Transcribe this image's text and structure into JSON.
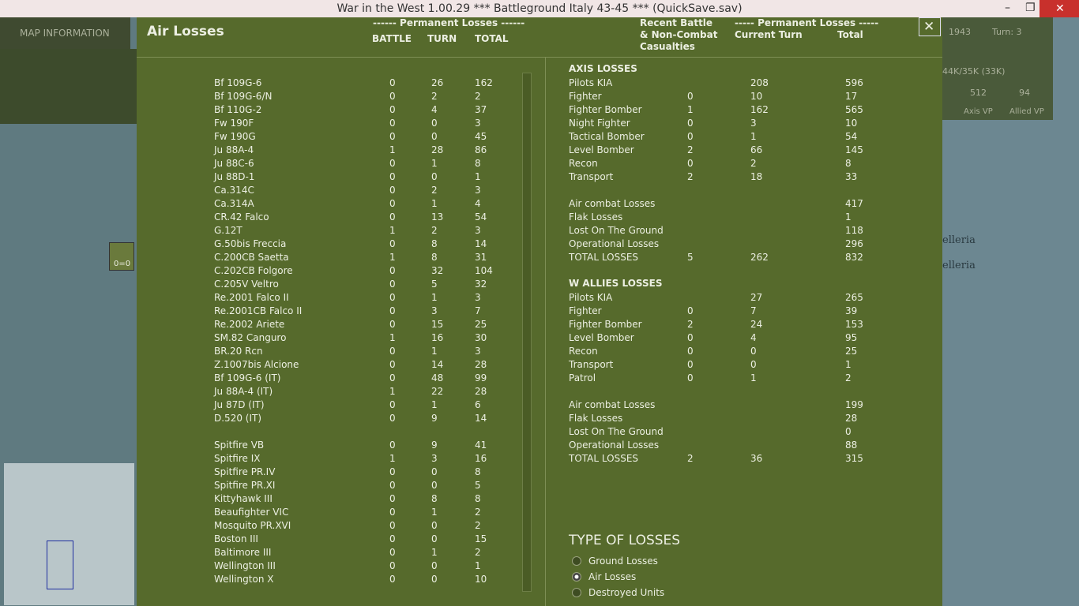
{
  "window": {
    "title": "War in the West 1.00.29    ***   Battleground Italy 43-45   ***   (QuickSave.sav)"
  },
  "background": {
    "map_tab": "MAP INFORMATION",
    "year": "1943",
    "turn": "Turn: 3",
    "strength": "44K/35K (33K)",
    "axis_vp": "512",
    "allied_vp": "94",
    "axis_vp_label": "Axis VP",
    "allied_vp_label": "Allied VP",
    "map_labels": [
      "elleria",
      "elleria"
    ],
    "unit_counter": "0=0"
  },
  "dialog": {
    "title": "Air Losses",
    "left_header": {
      "group": "------ Permanent Losses ------",
      "columns": [
        "BATTLE",
        "TURN",
        "TOTAL"
      ]
    },
    "right_header": {
      "recent": [
        "Recent Battle",
        "& Non-Combat",
        "Casualties"
      ],
      "group": "----- Permanent Losses -----",
      "columns": [
        "Current Turn",
        "Total"
      ]
    },
    "axis_aircraft": [
      [
        "Bf 109G-6",
        0,
        26,
        162
      ],
      [
        "Bf 109G-6/N",
        0,
        2,
        2
      ],
      [
        "Bf 110G-2",
        0,
        4,
        37
      ],
      [
        "Fw 190F",
        0,
        0,
        3
      ],
      [
        "Fw 190G",
        0,
        0,
        45
      ],
      [
        "Ju 88A-4",
        1,
        28,
        86
      ],
      [
        "Ju 88C-6",
        0,
        1,
        8
      ],
      [
        "Ju 88D-1",
        0,
        0,
        1
      ],
      [
        "Ca.314C",
        0,
        2,
        3
      ],
      [
        "Ca.314A",
        0,
        1,
        4
      ],
      [
        "CR.42 Falco",
        0,
        13,
        54
      ],
      [
        "G.12T",
        1,
        2,
        3
      ],
      [
        "G.50bis Freccia",
        0,
        8,
        14
      ],
      [
        "C.200CB Saetta",
        1,
        8,
        31
      ],
      [
        "C.202CB Folgore",
        0,
        32,
        104
      ],
      [
        "C.205V Veltro",
        0,
        5,
        32
      ],
      [
        "Re.2001 Falco II",
        0,
        1,
        3
      ],
      [
        "Re.2001CB Falco II",
        0,
        3,
        7
      ],
      [
        "Re.2002 Ariete",
        0,
        15,
        25
      ],
      [
        "SM.82 Canguro",
        1,
        16,
        30
      ],
      [
        "BR.20 Rcn",
        0,
        1,
        3
      ],
      [
        "Z.1007bis Alcione",
        0,
        14,
        28
      ],
      [
        "Bf 109G-6 (IT)",
        0,
        48,
        99
      ],
      [
        "Ju 88A-4 (IT)",
        1,
        22,
        28
      ],
      [
        "Ju 87D (IT)",
        0,
        1,
        6
      ],
      [
        "D.520 (IT)",
        0,
        9,
        14
      ]
    ],
    "allied_aircraft": [
      [
        "Spitfire VB",
        0,
        9,
        41
      ],
      [
        "Spitfire IX",
        1,
        3,
        16
      ],
      [
        "Spitfire PR.IV",
        0,
        0,
        8
      ],
      [
        "Spitfire PR.XI",
        0,
        0,
        5
      ],
      [
        "Kittyhawk III",
        0,
        8,
        8
      ],
      [
        "Beaufighter VIC",
        0,
        1,
        2
      ],
      [
        "Mosquito PR.XVI",
        0,
        0,
        2
      ],
      [
        "Boston III",
        0,
        0,
        15
      ],
      [
        "Baltimore III",
        0,
        1,
        2
      ],
      [
        "Wellington III",
        0,
        0,
        1
      ],
      [
        "Wellington X",
        0,
        0,
        10
      ]
    ],
    "sections": [
      {
        "title": "AXIS LOSSES",
        "rows": [
          [
            "Pilots KIA",
            null,
            208,
            596
          ],
          [
            "Fighter",
            0,
            10,
            17
          ],
          [
            "Fighter Bomber",
            1,
            162,
            565
          ],
          [
            "Night Fighter",
            0,
            3,
            10
          ],
          [
            "Tactical Bomber",
            0,
            1,
            54
          ],
          [
            "Level Bomber",
            2,
            66,
            145
          ],
          [
            "Recon",
            0,
            2,
            8
          ],
          [
            "Transport",
            2,
            18,
            33
          ]
        ],
        "summary": [
          [
            "Air combat Losses",
            null,
            null,
            417
          ],
          [
            "Flak Losses",
            null,
            null,
            1
          ],
          [
            "Lost On The Ground",
            null,
            null,
            118
          ],
          [
            "Operational Losses",
            null,
            null,
            296
          ],
          [
            "TOTAL LOSSES",
            5,
            262,
            832
          ]
        ]
      },
      {
        "title": "W ALLIES LOSSES",
        "rows": [
          [
            "Pilots KIA",
            null,
            27,
            265
          ],
          [
            "Fighter",
            0,
            7,
            39
          ],
          [
            "Fighter Bomber",
            2,
            24,
            153
          ],
          [
            "Level Bomber",
            0,
            4,
            95
          ],
          [
            "Recon",
            0,
            0,
            25
          ],
          [
            "Transport",
            0,
            0,
            1
          ],
          [
            "Patrol",
            0,
            1,
            2
          ]
        ],
        "summary": [
          [
            "Air combat Losses",
            null,
            null,
            199
          ],
          [
            "Flak Losses",
            null,
            null,
            28
          ],
          [
            "Lost On The Ground",
            null,
            null,
            0
          ],
          [
            "Operational Losses",
            null,
            null,
            88
          ],
          [
            "TOTAL LOSSES",
            2,
            36,
            315
          ]
        ]
      }
    ],
    "type_of_losses": {
      "title": "TYPE OF LOSSES",
      "options": [
        "Ground Losses",
        "Air Losses",
        "Destroyed Units"
      ],
      "selected": 1
    }
  }
}
